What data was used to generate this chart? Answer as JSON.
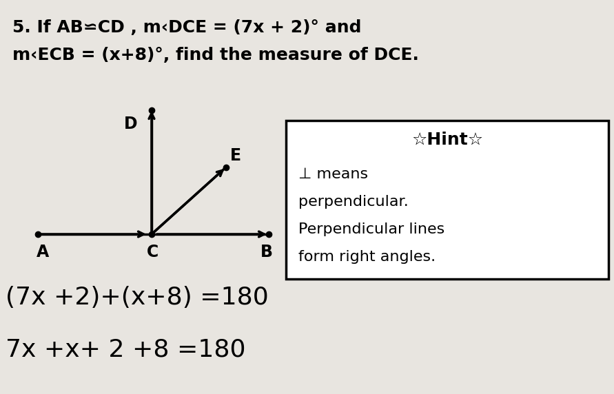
{
  "bg_color": "#c8c4c0",
  "paper_color": "#e8e5e0",
  "title_line1": "5. If AB⋍CD , m‹DCE = (7x + 2)° and",
  "title_line2": "m‹ECB = (x+8)°, find the measure of DCE.",
  "hint_title": "☆Hint☆",
  "hint_lines": [
    "⊥ means",
    "perpendicular.",
    "Perpendicular lines",
    "form right angles."
  ],
  "work_line1": "(7x +2)+(x+8) =180",
  "work_line2": "7x +x+ 2 +8 =180",
  "label_A": "A",
  "label_C": "C",
  "label_B": "B",
  "label_D": "D",
  "label_E": "E",
  "fig_width": 8.91,
  "fig_height": 5.72,
  "dpi": 100
}
